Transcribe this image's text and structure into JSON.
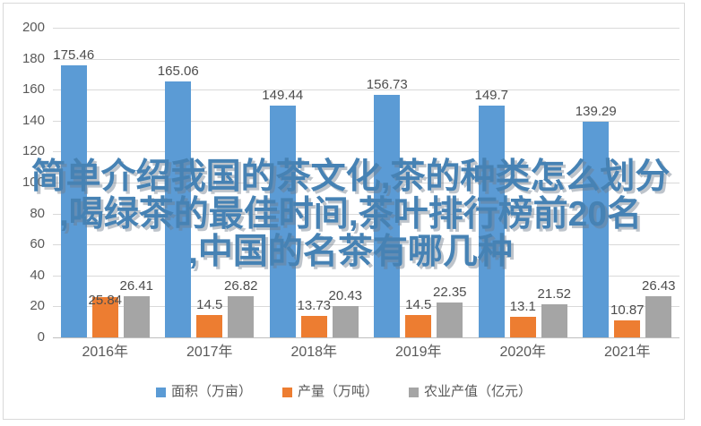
{
  "chart_data": {
    "type": "bar",
    "categories": [
      "2016年",
      "2017年",
      "2018年",
      "2019年",
      "2020年",
      "2021年"
    ],
    "series": [
      {
        "key": "area",
        "name": "面积（万亩）",
        "color": "#5B9BD5",
        "values": [
          175.46,
          165.06,
          149.44,
          156.73,
          149.7,
          139.29
        ]
      },
      {
        "key": "production",
        "name": "产量（万吨）",
        "color": "#ED7D31",
        "values": [
          25.84,
          14.5,
          13.73,
          14.5,
          13.1,
          10.87
        ]
      },
      {
        "key": "agri-output-value",
        "name": "农业产值（亿元）",
        "color": "#A5A5A5",
        "values": [
          26.41,
          26.82,
          20.43,
          22.35,
          21.52,
          26.43
        ]
      }
    ],
    "y_axis": {
      "min": 0,
      "max": 200,
      "step": 20,
      "ticks": [
        200,
        180,
        160,
        140,
        120,
        100,
        80,
        60,
        40,
        20,
        0
      ]
    },
    "grid": true,
    "legend_position": "bottom",
    "overlay_title_lines": [
      "简单介绍我国的茶文化,茶的种类怎么划分",
      ",喝绿茶的最佳时间,茶叶排行榜前20名",
      ",中国的名茶有哪几种"
    ],
    "overlay_text_color": "#4682B4",
    "gridline_color": "#D9D9D9",
    "axis_line_color": "#BFBFBF",
    "tick_label_color": "#595959",
    "data_label_color": "#4D4D4D"
  }
}
